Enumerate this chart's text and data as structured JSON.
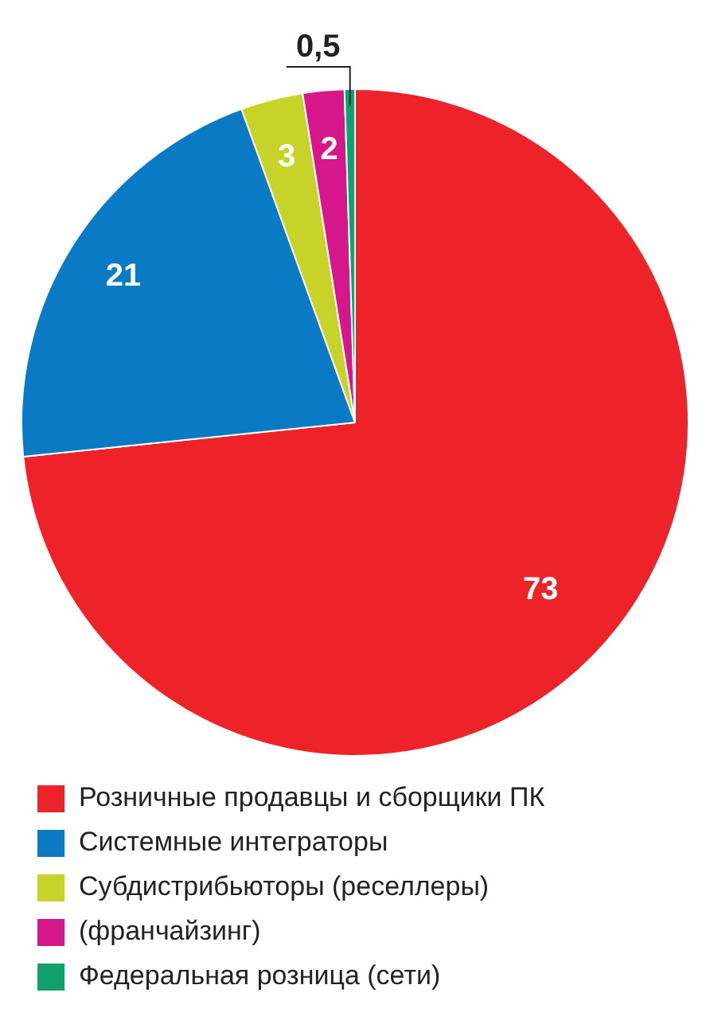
{
  "chart_data": {
    "type": "pie",
    "categories": [
      "Розничные продавцы и сборщики ПК",
      "Системные интеграторы",
      "Субдистрибьюторы (реселлеры)",
      "(франчайзинг)",
      "Федеральная розница (сети)"
    ],
    "values": [
      73,
      21,
      3,
      2,
      0.5
    ],
    "colors": [
      "#ee2229",
      "#0a7ac4",
      "#c8d32a",
      "#d6168b",
      "#0fa06e"
    ],
    "value_labels": [
      "73",
      "21",
      "3",
      "2",
      "0,5"
    ],
    "legend": "bottom"
  }
}
